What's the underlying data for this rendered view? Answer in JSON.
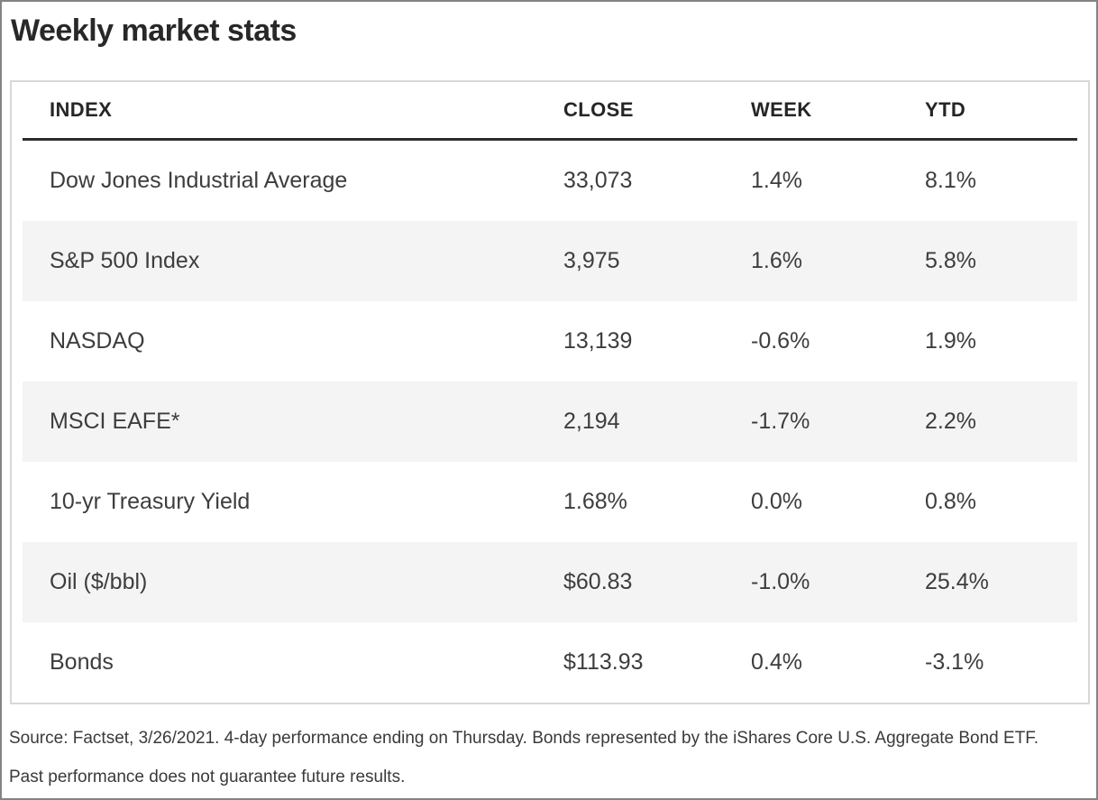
{
  "chart_data": {
    "type": "table",
    "title": "Weekly market stats",
    "columns": [
      "INDEX",
      "CLOSE",
      "WEEK",
      "YTD"
    ],
    "rows": [
      [
        "Dow Jones Industrial Average",
        "33,073",
        "1.4%",
        "8.1%"
      ],
      [
        "S&P 500 Index",
        "3,975",
        "1.6%",
        "5.8%"
      ],
      [
        "NASDAQ",
        "13,139",
        "-0.6%",
        "1.9%"
      ],
      [
        "MSCI EAFE*",
        "2,194",
        "-1.7%",
        "2.2%"
      ],
      [
        "10-yr Treasury Yield",
        "1.68%",
        "0.0%",
        "0.8%"
      ],
      [
        "Oil ($/bbl)",
        "$60.83",
        "-1.0%",
        "25.4%"
      ],
      [
        "Bonds",
        "$113.93",
        "0.4%",
        "-3.1%"
      ]
    ],
    "layout_hints": {
      "zebra_striping": "alternate rows shaded starting with second row",
      "header_rule": "thick dark line under header"
    }
  },
  "footer": {
    "line1": "Source: Factset, 3/26/2021. 4-day performance ending on Thursday. Bonds represented by the iShares Core U.S. Aggregate Bond ETF.",
    "line2": "Past performance does not guarantee future results."
  },
  "colors": {
    "stripe_gray": "#f4f4f4",
    "header_rule": "#2d2d2d",
    "table_border": "#d8d8d8",
    "outer_border": "#848484",
    "body_text": "#3d3d3d",
    "heading_text": "#282828"
  }
}
